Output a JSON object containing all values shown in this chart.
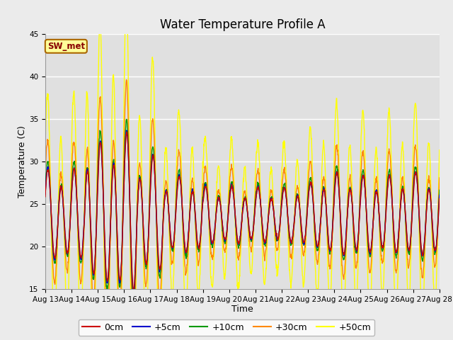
{
  "title": "Water Temperature Profile A",
  "xlabel": "Time",
  "ylabel": "Temperature (C)",
  "ylim": [
    15,
    45
  ],
  "n_days": 15,
  "x_tick_labels": [
    "Aug 13",
    "Aug 14",
    "Aug 15",
    "Aug 16",
    "Aug 17",
    "Aug 18",
    "Aug 19",
    "Aug 20",
    "Aug 21",
    "Aug 22",
    "Aug 23",
    "Aug 24",
    "Aug 25",
    "Aug 26",
    "Aug 27",
    "Aug 28"
  ],
  "yticks": [
    15,
    20,
    25,
    30,
    35,
    40,
    45
  ],
  "colors": {
    "0cm": "#cc0000",
    "+5cm": "#0000cc",
    "+10cm": "#009900",
    "+30cm": "#ff8800",
    "+50cm": "#ffff00"
  },
  "annotation_text": "SW_met",
  "annotation_color": "#880000",
  "annotation_bg": "#ffff99",
  "annotation_border": "#aa6600",
  "background_outer": "#ebebeb",
  "background_plot": "#e0e0e0",
  "grid_color": "#ffffff",
  "title_fontsize": 12,
  "axis_label_fontsize": 9,
  "tick_fontsize": 7.5,
  "legend_fontsize": 9,
  "line_width": 1.0
}
